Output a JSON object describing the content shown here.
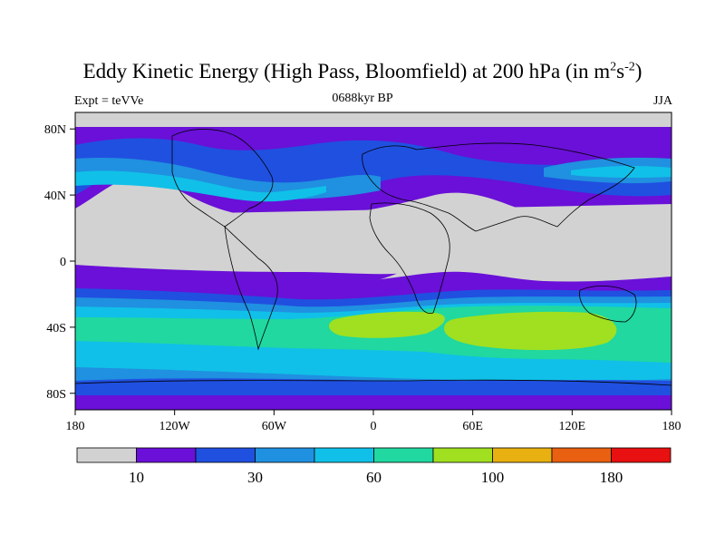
{
  "figure": {
    "title_main": "Eddy Kinetic Energy (High Pass, Bloomfield) at 200 hPa (in m",
    "title_unit_sup1": "2",
    "title_unit_mid": "s",
    "title_unit_sup2": "-2",
    "title_close": ")",
    "subtitle": "0688kyr BP",
    "left_label": "Expt = teVVe",
    "right_label": "JJA"
  },
  "map": {
    "lat_ticks": [
      "80N",
      "40N",
      "0",
      "40S",
      "80S"
    ],
    "lon_ticks": [
      "180",
      "120W",
      "60W",
      "0",
      "60E",
      "120E",
      "180"
    ],
    "lat_range": [
      -90,
      90
    ],
    "lon_range": [
      -180,
      180
    ]
  },
  "colorbar": {
    "colors": [
      "#d2d2d2",
      "#6a10d8",
      "#2050e0",
      "#2090e0",
      "#10c0e8",
      "#20d8a0",
      "#a0e020",
      "#e8b010",
      "#e86010",
      "#e81010"
    ],
    "labels": [
      "10",
      "30",
      "60",
      "100",
      "180"
    ],
    "label_positions": [
      1,
      3,
      5,
      7,
      9
    ]
  }
}
